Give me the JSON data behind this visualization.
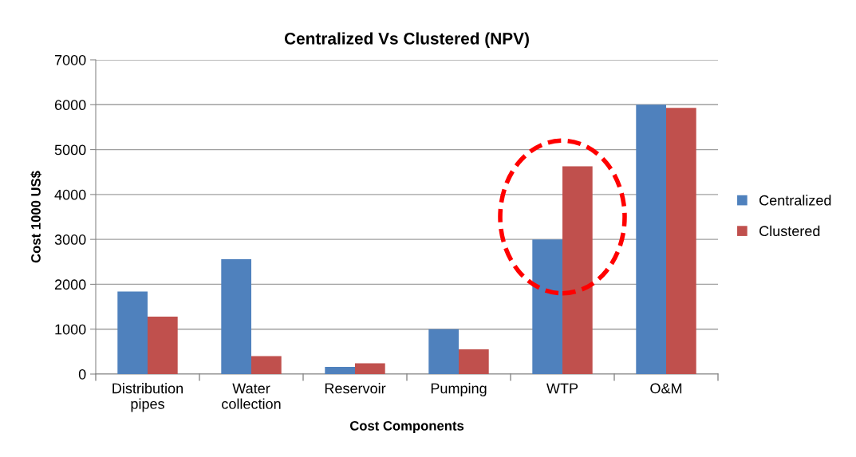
{
  "chart_data": {
    "type": "bar",
    "title": "Centralized Vs Clustered (NPV)",
    "xlabel": "Cost Components",
    "ylabel": "Cost 1000 US$",
    "categories": [
      "Distribution\npipes",
      "Water\ncollection",
      "Reservoir",
      "Pumping",
      "WTP",
      "O&M"
    ],
    "series": [
      {
        "name": "Centralized",
        "color": "#4f81bd",
        "values": [
          1840,
          2560,
          160,
          1000,
          3000,
          6000
        ]
      },
      {
        "name": "Clustered",
        "color": "#c0504d",
        "values": [
          1280,
          400,
          240,
          550,
          4630,
          5930
        ]
      }
    ],
    "ylim": [
      0,
      7000
    ],
    "yticks": [
      0,
      1000,
      2000,
      3000,
      4000,
      5000,
      6000,
      7000
    ],
    "grid": "y",
    "legend": "right"
  }
}
